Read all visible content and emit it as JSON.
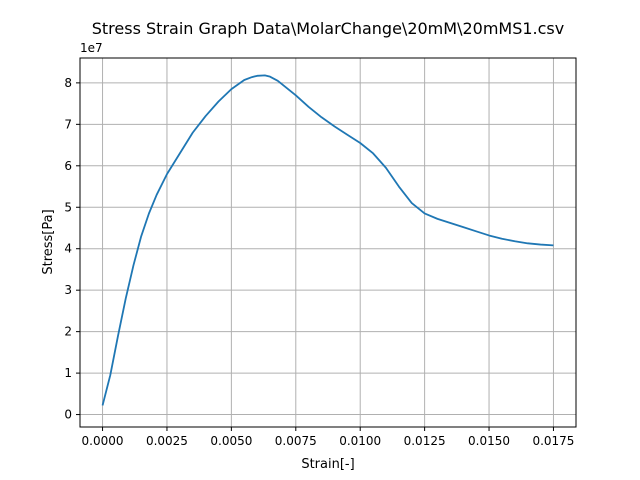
{
  "chart_data": {
    "type": "line",
    "title": "Stress Strain Graph Data\\MolarChange\\20mM\\20mMS1.csv",
    "xlabel": "Strain[-]",
    "ylabel": "Stress[Pa]",
    "y_offset_label": "1e7",
    "xlim": [
      -0.000875,
      0.018375
    ],
    "ylim": [
      -0.3,
      8.6
    ],
    "y_multiplier": 10000000,
    "grid": true,
    "x_ticks": [
      0.0,
      0.0025,
      0.005,
      0.0075,
      0.01,
      0.0125,
      0.015,
      0.0175
    ],
    "x_tick_labels": [
      "0.0000",
      "0.0025",
      "0.0050",
      "0.0075",
      "0.0100",
      "0.0125",
      "0.0150",
      "0.0175"
    ],
    "y_ticks": [
      0,
      1,
      2,
      3,
      4,
      5,
      6,
      7,
      8
    ],
    "y_tick_labels": [
      "0",
      "1",
      "2",
      "3",
      "4",
      "5",
      "6",
      "7",
      "8"
    ],
    "series": [
      {
        "color": "#1f77b4",
        "x": [
          0.0,
          0.0003,
          0.0006,
          0.0009,
          0.0012,
          0.0015,
          0.0018,
          0.0021,
          0.0025,
          0.003,
          0.0035,
          0.004,
          0.0045,
          0.005,
          0.0055,
          0.0058,
          0.006,
          0.0063,
          0.0065,
          0.0068,
          0.007,
          0.0075,
          0.008,
          0.0085,
          0.009,
          0.0095,
          0.01,
          0.0105,
          0.011,
          0.0115,
          0.012,
          0.0125,
          0.013,
          0.0135,
          0.014,
          0.0145,
          0.015,
          0.0155,
          0.016,
          0.0165,
          0.017,
          0.0175
        ],
        "y": [
          0.22,
          0.95,
          1.9,
          2.8,
          3.6,
          4.3,
          4.85,
          5.3,
          5.8,
          6.3,
          6.8,
          7.2,
          7.55,
          7.85,
          8.07,
          8.14,
          8.17,
          8.18,
          8.15,
          8.05,
          7.95,
          7.7,
          7.42,
          7.17,
          6.95,
          6.75,
          6.55,
          6.3,
          5.95,
          5.5,
          5.1,
          4.85,
          4.72,
          4.62,
          4.52,
          4.42,
          4.32,
          4.24,
          4.18,
          4.13,
          4.1,
          4.08
        ]
      }
    ]
  }
}
